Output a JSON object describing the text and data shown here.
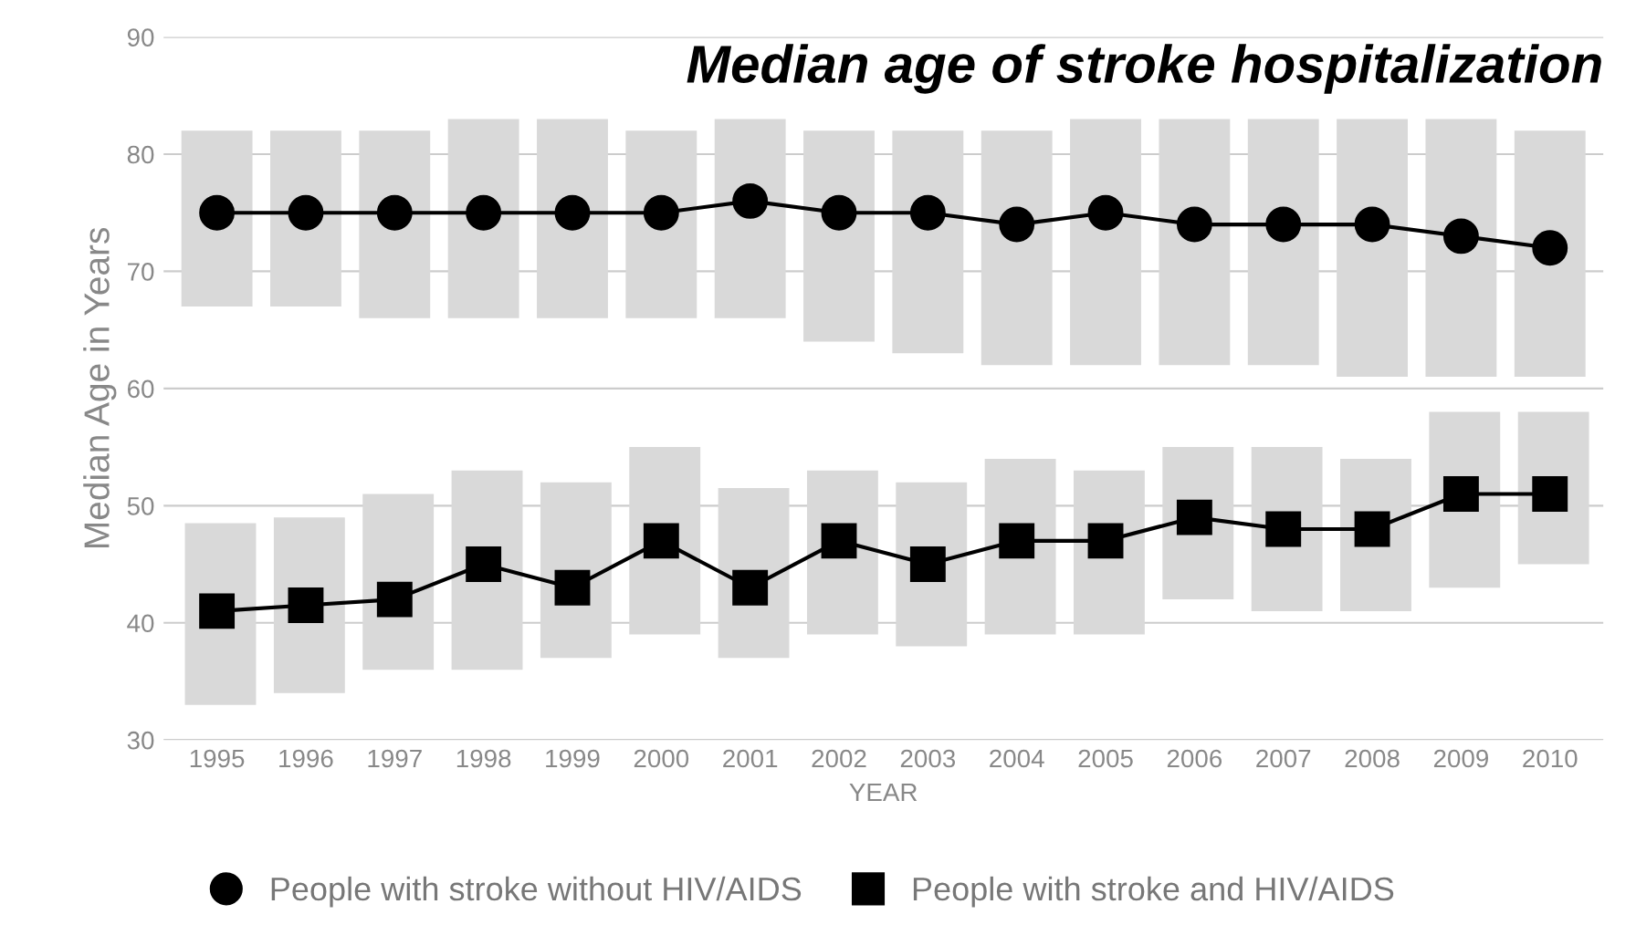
{
  "chart_data": {
    "type": "line",
    "title": "Median age of stroke hospitalization",
    "xlabel": "YEAR",
    "ylabel": "Median Age in Years",
    "categories": [
      "1995",
      "1996",
      "1997",
      "1998",
      "1999",
      "2000",
      "2001",
      "2002",
      "2003",
      "2004",
      "2005",
      "2006",
      "2007",
      "2008",
      "2009",
      "2010"
    ],
    "series": [
      {
        "type": "bar",
        "color": "#d9d9d9",
        "base": [
          67,
          67,
          66,
          66,
          66,
          66,
          66,
          64,
          63,
          62,
          62,
          62,
          62,
          61,
          61,
          61
        ],
        "values": [
          15,
          15,
          16,
          17,
          17,
          16,
          17,
          18,
          19,
          20,
          21,
          21,
          21,
          22,
          22,
          21
        ]
      },
      {
        "type": "bar",
        "color": "#d9d9d9",
        "base": [
          33,
          34,
          36,
          36,
          37,
          39,
          37,
          39,
          38,
          39,
          39,
          42,
          41,
          41,
          43,
          45
        ],
        "values": [
          15.5,
          15,
          15,
          17,
          15,
          16,
          14.5,
          14,
          14,
          15,
          14,
          13,
          14,
          13,
          15,
          13
        ]
      },
      {
        "name": "People with stroke without HIV/AIDS",
        "color": "#000000",
        "marker": "circle",
        "values": [
          75,
          75,
          75,
          75,
          75,
          75,
          76,
          75,
          75,
          74,
          75,
          74,
          74,
          74,
          73,
          72
        ]
      },
      {
        "name": "People with stroke and HIV/AIDS",
        "color": "#000000",
        "marker": "square",
        "values": [
          41,
          41.5,
          42,
          45,
          43,
          47,
          43,
          47,
          45,
          47,
          47,
          49,
          48,
          48,
          51,
          51
        ]
      }
    ],
    "ylim": [
      30,
      90
    ],
    "yticks": [
      30,
      40,
      50,
      60,
      70,
      80,
      90
    ],
    "grid": "y",
    "legend": "bottom",
    "line_style": "solid"
  }
}
